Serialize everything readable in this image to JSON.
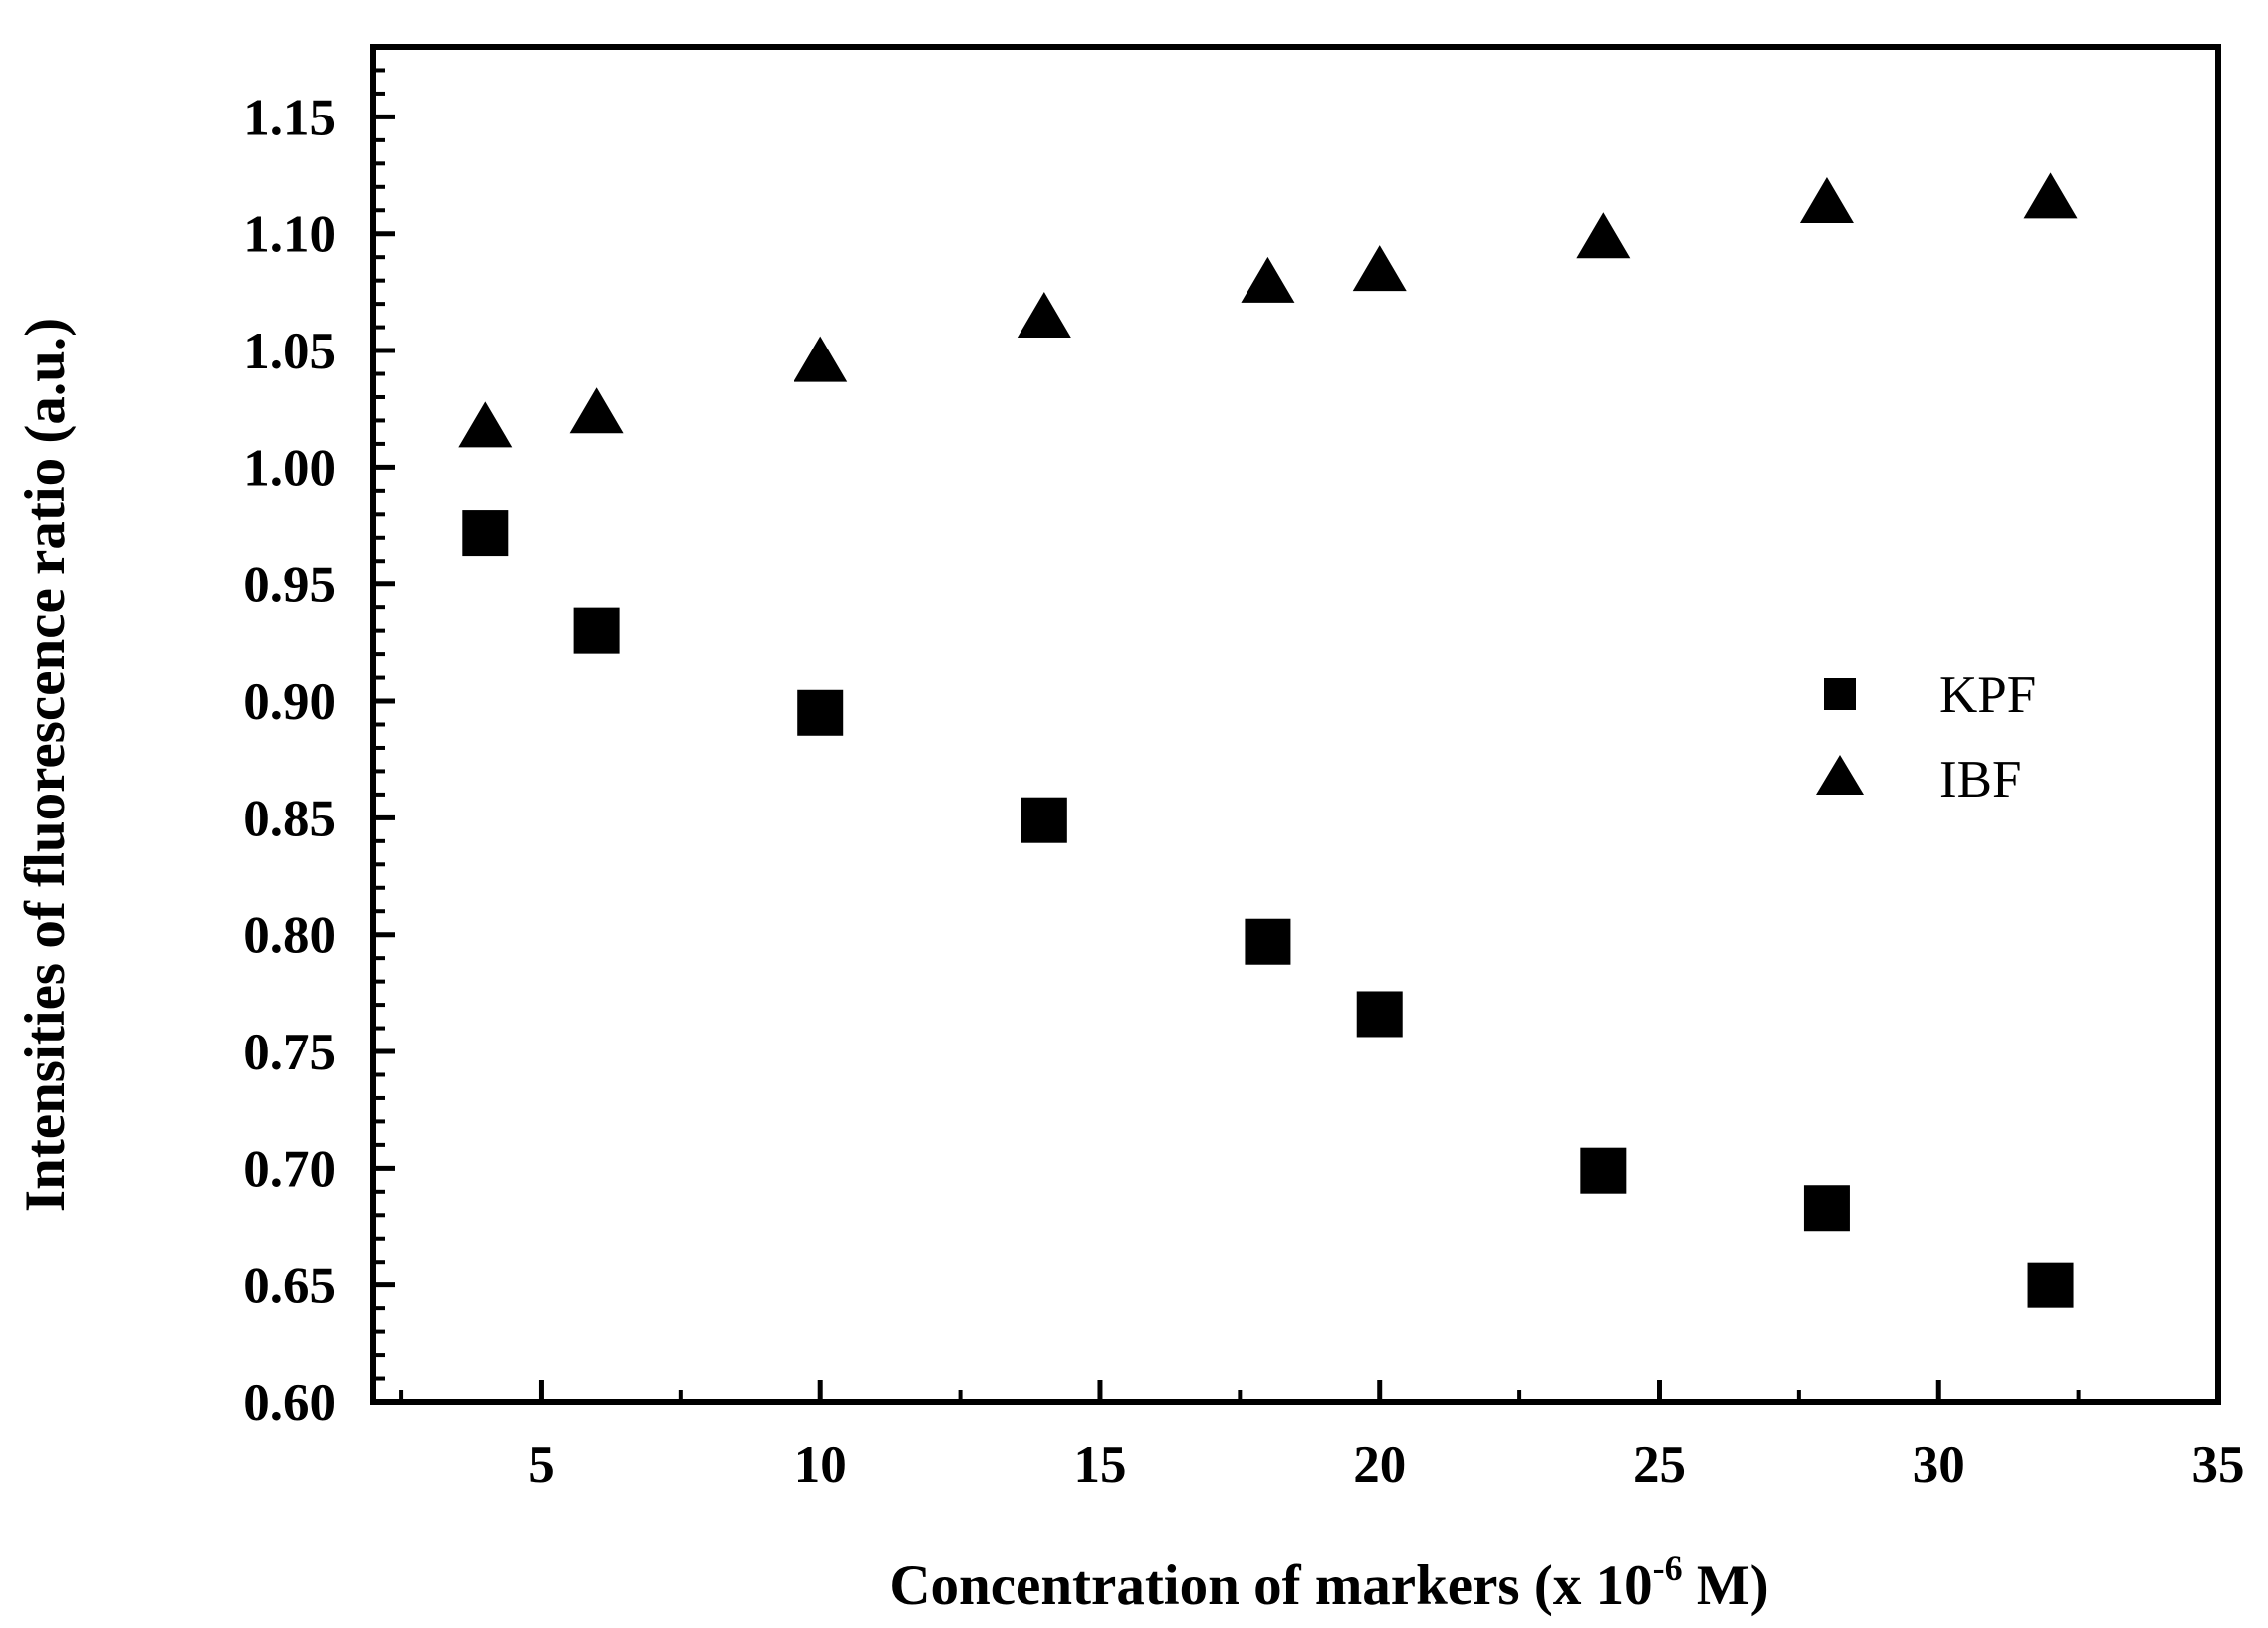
{
  "chart_data": {
    "type": "scatter",
    "title": "",
    "xlabel": "Concentration of markers (x 10",
    "xlabel_sup": "-6",
    "xlabel_suffix": " M)",
    "ylabel": "Intensities of fluorescence ratio (a.u.)",
    "xlim": [
      2,
      35
    ],
    "ylim": [
      0.6,
      1.18
    ],
    "x_ticks": [
      5,
      10,
      15,
      20,
      25,
      30,
      35
    ],
    "y_ticks": [
      0.6,
      0.65,
      0.7,
      0.75,
      0.8,
      0.85,
      0.9,
      0.95,
      1.0,
      1.05,
      1.1,
      1.15
    ],
    "x_tick_labels": [
      "5",
      "10",
      "15",
      "20",
      "25",
      "30",
      "35"
    ],
    "y_tick_labels": [
      "0.60",
      "0.65",
      "0.70",
      "0.75",
      "0.80",
      "0.85",
      "0.90",
      "0.95",
      "1.00",
      "1.05",
      "1.10",
      "1.15"
    ],
    "grid": false,
    "legend_position": "right",
    "series": [
      {
        "name": "KPF",
        "marker": "square",
        "color": "#000000",
        "x": [
          4,
          6,
          10,
          14,
          18,
          20,
          24,
          28,
          32
        ],
        "y": [
          0.972,
          0.93,
          0.895,
          0.849,
          0.797,
          0.766,
          0.699,
          0.683,
          0.65
        ]
      },
      {
        "name": "IBF",
        "marker": "triangle",
        "color": "#000000",
        "x": [
          4,
          6,
          10,
          14,
          18,
          20,
          24,
          28,
          32
        ],
        "y": [
          1.016,
          1.022,
          1.044,
          1.063,
          1.078,
          1.083,
          1.097,
          1.112,
          1.114
        ]
      }
    ]
  }
}
